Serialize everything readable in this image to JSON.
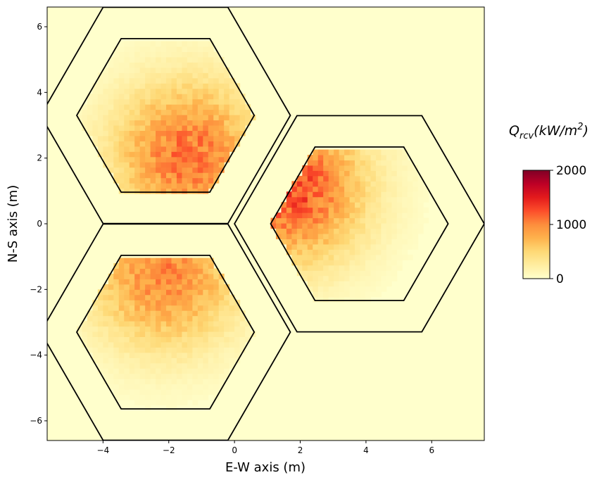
{
  "chart_data": {
    "type": "heatmap",
    "title": "",
    "xlabel": "E-W axis (m)",
    "ylabel": "N-S axis (m)",
    "xlim": [
      -5.7,
      7.6
    ],
    "ylim": [
      -6.6,
      6.6
    ],
    "x_ticks": [
      -4,
      -2,
      0,
      2,
      4,
      6
    ],
    "y_ticks": [
      -6,
      -4,
      -2,
      0,
      2,
      4,
      6
    ],
    "x_tick_labels": [
      "−4",
      "−2",
      "0",
      "2",
      "4",
      "6"
    ],
    "y_tick_labels": [
      "−6",
      "−4",
      "−2",
      "0",
      "2",
      "4",
      "6"
    ],
    "colorbar": {
      "title_main": "Q",
      "title_sub": "rcv",
      "title_units": "(kW/m",
      "title_sup": "2",
      "title_close": ")",
      "min": 0,
      "max": 2000,
      "ticks": [
        0,
        1000,
        2000
      ],
      "tick_labels": [
        "0",
        "1000",
        "2000"
      ],
      "colormap": "YlOrRd",
      "colors": [
        "#ffffcc",
        "#ffeda0",
        "#fed976",
        "#feb24c",
        "#fd8d3c",
        "#fc4e2a",
        "#e31a1c",
        "#bd0026",
        "#800026"
      ]
    },
    "hexagons": [
      {
        "name": "upper-left",
        "center": [
          -2.1,
          3.3
        ],
        "outer_radius": 3.8,
        "inner_radius": 2.7
      },
      {
        "name": "right",
        "center": [
          3.8,
          0.0
        ],
        "outer_radius": 3.8,
        "inner_radius": 2.7
      },
      {
        "name": "lower-left",
        "center": [
          -2.1,
          -3.3
        ],
        "outer_radius": 3.8,
        "inner_radius": 2.7
      }
    ],
    "heat_spots": [
      {
        "hexagon": "upper-left",
        "peak_x": -1.5,
        "peak_y": 2.0,
        "peak_value": 1100
      },
      {
        "hexagon": "right",
        "peak_x": 1.6,
        "peak_y": 1.0,
        "peak_value": 1300
      },
      {
        "hexagon": "lower-left",
        "peak_x": -2.2,
        "peak_y": -1.6,
        "peak_value": 1000
      }
    ]
  }
}
